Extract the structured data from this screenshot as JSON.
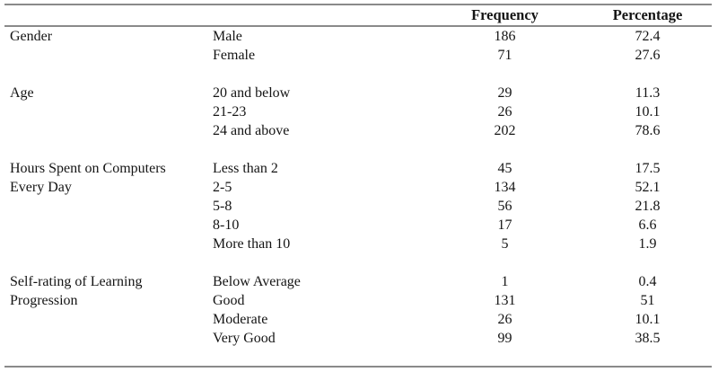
{
  "table": {
    "headers": {
      "frequency": "Frequency",
      "percentage": "Percentage"
    },
    "style": {
      "rule_color": "#8a8a8a",
      "text_color": "#141414",
      "background": "#ffffff"
    },
    "groups": [
      {
        "label_lines": [
          "Gender"
        ],
        "rows": [
          {
            "item": "Male",
            "frequency": "186",
            "percentage": "72.4"
          },
          {
            "item": "Female",
            "frequency": "71",
            "percentage": "27.6"
          }
        ]
      },
      {
        "label_lines": [
          "Age"
        ],
        "rows": [
          {
            "item": "20 and below",
            "frequency": "29",
            "percentage": "11.3"
          },
          {
            "item": "21-23",
            "frequency": "26",
            "percentage": "10.1"
          },
          {
            "item": "24 and above",
            "frequency": "202",
            "percentage": "78.6"
          }
        ]
      },
      {
        "label_lines": [
          "Hours Spent on Computers",
          "Every Day"
        ],
        "rows": [
          {
            "item": "Less than 2",
            "frequency": "45",
            "percentage": "17.5"
          },
          {
            "item": "2-5",
            "frequency": "134",
            "percentage": "52.1"
          },
          {
            "item": "5-8",
            "frequency": "56",
            "percentage": "21.8"
          },
          {
            "item": "8-10",
            "frequency": "17",
            "percentage": "6.6"
          },
          {
            "item": "More than 10",
            "frequency": "5",
            "percentage": "1.9"
          }
        ]
      },
      {
        "label_lines": [
          "Self-rating of Learning",
          "Progression"
        ],
        "rows": [
          {
            "item": "Below Average",
            "frequency": "1",
            "percentage": "0.4"
          },
          {
            "item": "Good",
            "frequency": "131",
            "percentage": "51"
          },
          {
            "item": "Moderate",
            "frequency": "26",
            "percentage": "10.1"
          },
          {
            "item": "Very Good",
            "frequency": "99",
            "percentage": "38.5"
          }
        ]
      }
    ]
  }
}
